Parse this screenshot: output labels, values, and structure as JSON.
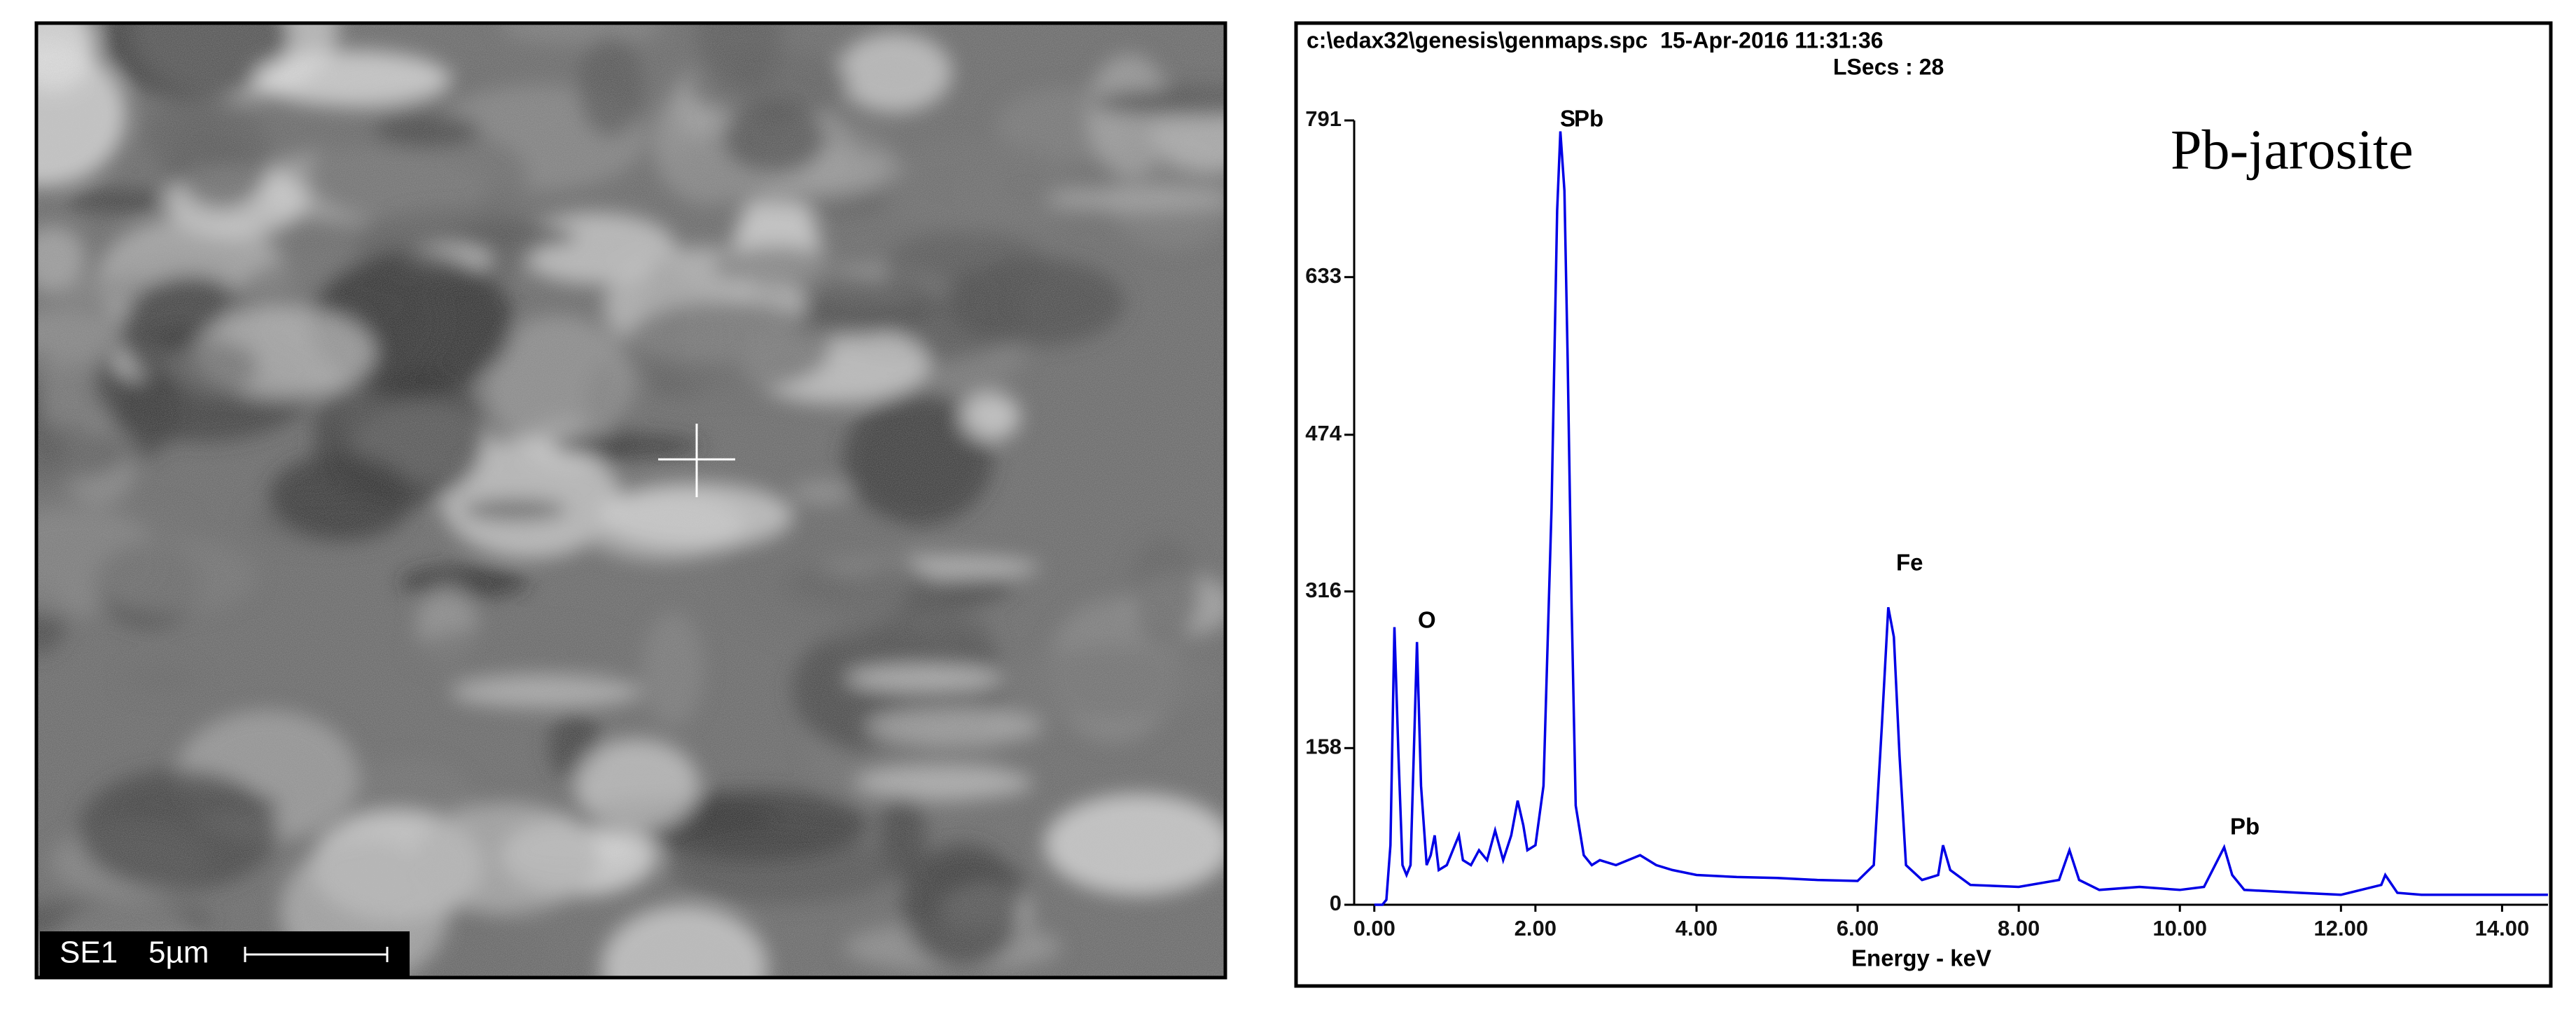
{
  "sem_image": {
    "detector": "SE1",
    "scale": "5µm"
  },
  "chart_data": {
    "type": "line",
    "title": "c:\\edax32\\genesis\\genmaps.spc  15-Apr-2016 11:31:36",
    "subtitle": "LSecs : 28",
    "xlabel": "Energy - keV",
    "annotation": "Pb-jarosite",
    "peak_labels": [
      "O",
      "S",
      "Pb",
      "Fe",
      "Pb"
    ],
    "color": "#0000e6",
    "x": [
      0.0,
      0.1,
      0.15,
      0.2,
      0.25,
      0.3,
      0.35,
      0.4,
      0.45,
      0.5,
      0.53,
      0.58,
      0.65,
      0.7,
      0.75,
      0.8,
      0.9,
      1.0,
      1.05,
      1.1,
      1.2,
      1.3,
      1.4,
      1.5,
      1.6,
      1.7,
      1.78,
      1.85,
      1.9,
      2.0,
      2.1,
      2.2,
      2.27,
      2.31,
      2.36,
      2.4,
      2.45,
      2.5,
      2.6,
      2.7,
      2.8,
      3.0,
      3.3,
      3.5,
      3.7,
      4.0,
      4.5,
      5.0,
      5.5,
      6.0,
      6.2,
      6.3,
      6.38,
      6.45,
      6.52,
      6.6,
      6.8,
      7.0,
      7.06,
      7.15,
      7.4,
      8.0,
      8.5,
      8.63,
      8.75,
      9.0,
      9.5,
      10.0,
      10.3,
      10.5,
      10.55,
      10.65,
      10.8,
      11.5,
      12.0,
      12.5,
      12.55,
      12.7,
      13.0,
      14.0,
      14.57
    ],
    "values": [
      0,
      0,
      5,
      60,
      280,
      150,
      40,
      30,
      40,
      180,
      265,
      120,
      40,
      50,
      70,
      35,
      40,
      60,
      70,
      45,
      40,
      55,
      45,
      75,
      45,
      70,
      105,
      80,
      55,
      60,
      120,
      400,
      700,
      780,
      720,
      550,
      300,
      100,
      50,
      40,
      45,
      40,
      50,
      40,
      35,
      30,
      28,
      27,
      25,
      24,
      40,
      180,
      300,
      270,
      150,
      40,
      25,
      30,
      60,
      35,
      20,
      18,
      25,
      55,
      25,
      15,
      18,
      15,
      18,
      50,
      58,
      30,
      15,
      12,
      10,
      20,
      30,
      12,
      10,
      10,
      10
    ],
    "xlim": [
      -0.25,
      14.57
    ],
    "ylim": [
      0,
      791
    ],
    "xticks": [
      {
        "value": 0,
        "label": "0.00"
      },
      {
        "value": 2,
        "label": "2.00"
      },
      {
        "value": 4,
        "label": "4.00"
      },
      {
        "value": 6,
        "label": "6.00"
      },
      {
        "value": 8,
        "label": "8.00"
      },
      {
        "value": 10,
        "label": "10.00"
      },
      {
        "value": 12,
        "label": "12.00"
      },
      {
        "value": 14,
        "label": "14.00"
      }
    ],
    "yticks": [
      0,
      158,
      316,
      474,
      633,
      791
    ]
  }
}
